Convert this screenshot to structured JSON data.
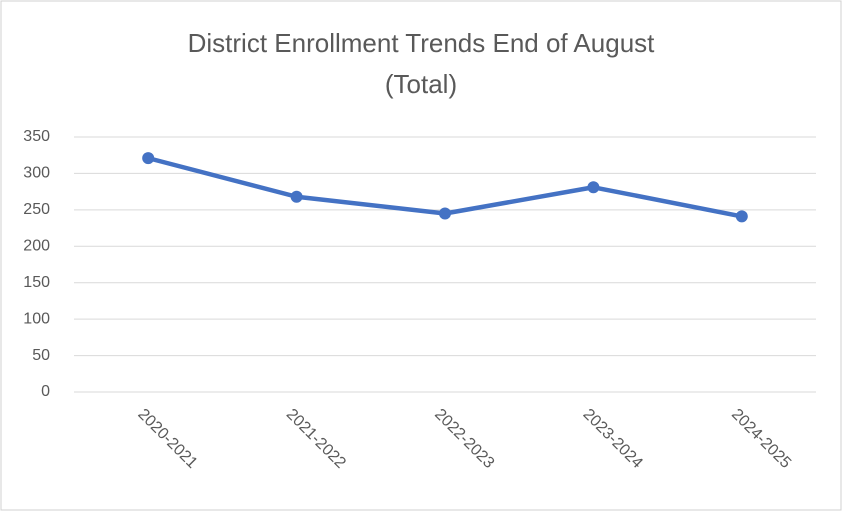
{
  "chart_data": {
    "type": "line",
    "title": [
      "District Enrollment Trends End of August",
      "(Total)"
    ],
    "categories": [
      "2020-2021",
      "2021-2022",
      "2022-2023",
      "2023-2024",
      "2024-2025"
    ],
    "values": [
      321,
      268,
      245,
      281,
      241
    ],
    "color": "#4472c4",
    "ylim": [
      0,
      350
    ],
    "yticks": [
      0,
      50,
      100,
      150,
      200,
      250,
      300,
      350
    ],
    "grid": true
  }
}
